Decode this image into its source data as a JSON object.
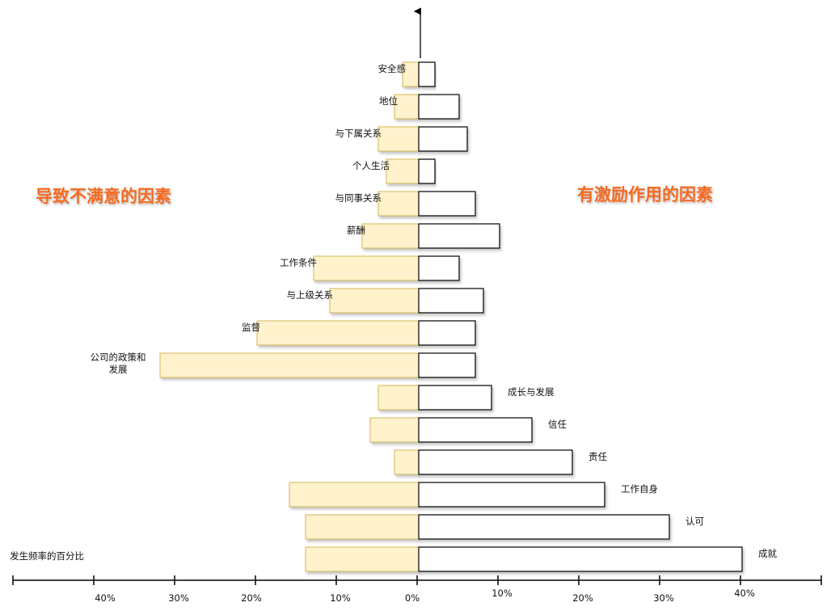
{
  "titles": {
    "left": "导致不满意的因素",
    "right": "有激励作用的因素"
  },
  "axis_caption": "发生频率的百分比",
  "colors": {
    "left_fill": "#fff2cc",
    "left_stroke": "#d6b656",
    "right_fill": "#ffffff",
    "right_stroke": "#000000",
    "title": "#f36b21"
  },
  "chart_data": {
    "type": "bar",
    "orientation": "horizontal-diverging",
    "xlim": [
      -50,
      50
    ],
    "x_ticks": [
      "40%",
      "30%",
      "20%",
      "10%",
      "0%",
      "10%",
      "20%",
      "30%",
      "40%"
    ],
    "factors": [
      {
        "label": "安全感",
        "label_side": "left",
        "dissatisfier": 2,
        "motivator": 2
      },
      {
        "label": "地位",
        "label_side": "left",
        "dissatisfier": 3,
        "motivator": 5
      },
      {
        "label": "与下属关系",
        "label_side": "left",
        "dissatisfier": 5,
        "motivator": 6
      },
      {
        "label": "个人生活",
        "label_side": "left",
        "dissatisfier": 4,
        "motivator": 2
      },
      {
        "label": "与同事关系",
        "label_side": "left",
        "dissatisfier": 5,
        "motivator": 7
      },
      {
        "label": "薪酬",
        "label_side": "left",
        "dissatisfier": 7,
        "motivator": 10
      },
      {
        "label": "工作条件",
        "label_side": "left",
        "dissatisfier": 13,
        "motivator": 5
      },
      {
        "label": "与上级关系",
        "label_side": "left",
        "dissatisfier": 11,
        "motivator": 8
      },
      {
        "label": "监督",
        "label_side": "left",
        "dissatisfier": 20,
        "motivator": 7
      },
      {
        "label": "公司的政策和\n发展",
        "label_side": "left",
        "dissatisfier": 32,
        "motivator": 7
      },
      {
        "label": "成长与发展",
        "label_side": "right",
        "dissatisfier": 5,
        "motivator": 9
      },
      {
        "label": "信任",
        "label_side": "right",
        "dissatisfier": 6,
        "motivator": 14
      },
      {
        "label": "责任",
        "label_side": "right",
        "dissatisfier": 3,
        "motivator": 19
      },
      {
        "label": "工作自身",
        "label_side": "right",
        "dissatisfier": 16,
        "motivator": 23
      },
      {
        "label": "认可",
        "label_side": "right",
        "dissatisfier": 14,
        "motivator": 31
      },
      {
        "label": "成就",
        "label_side": "right",
        "dissatisfier": 14,
        "motivator": 40
      }
    ]
  }
}
